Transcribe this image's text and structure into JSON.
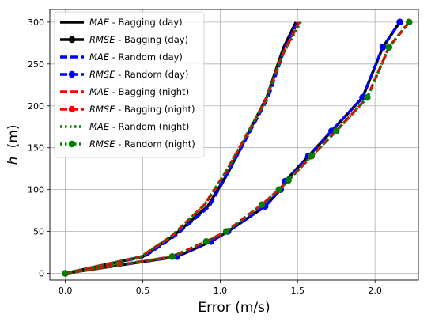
{
  "chart_data": {
    "type": "line",
    "xlabel": "Error (m/s)",
    "ylabel": "h",
    "ylabel_unit": "(m)",
    "xlim": [
      -0.1,
      2.28
    ],
    "ylim": [
      -8,
      315
    ],
    "x_ticks": [
      0.0,
      0.5,
      1.0,
      1.5,
      2.0
    ],
    "x_tick_labels": [
      "0.0",
      "0.5",
      "1.0",
      "1.5",
      "2.0"
    ],
    "y_ticks": [
      0,
      50,
      100,
      150,
      200,
      250,
      300
    ],
    "y_tick_labels": [
      "0",
      "50",
      "100",
      "150",
      "200",
      "250",
      "300"
    ],
    "grid": true,
    "legend_position": "top-left",
    "series": [
      {
        "metric": "MAE",
        "label_rest": " - Bagging (day)",
        "color": "#000000",
        "style": "solid",
        "marker": "none",
        "x": [
          0.0,
          0.5,
          0.7,
          0.92,
          1.05,
          1.3,
          1.41,
          1.49
        ],
        "y": [
          0,
          20,
          45,
          80,
          120,
          210,
          270,
          300
        ]
      },
      {
        "metric": "RMSE",
        "label_rest": " - Bagging (day)",
        "color": "#000000",
        "style": "solid",
        "marker": "circle",
        "x": [
          0.0,
          0.72,
          0.94,
          1.05,
          1.29,
          1.39,
          1.42,
          1.57,
          1.72,
          1.92,
          2.05,
          2.16
        ],
        "y": [
          0,
          20,
          38,
          50,
          80,
          100,
          110,
          140,
          170,
          210,
          270,
          300
        ]
      },
      {
        "metric": "MAE",
        "label_rest": "  - Random (day)",
        "color": "#0000ff",
        "style": "dashed",
        "marker": "none",
        "x": [
          0.0,
          0.51,
          0.71,
          0.93,
          1.05,
          1.31,
          1.42,
          1.5
        ],
        "y": [
          0,
          20,
          45,
          80,
          120,
          210,
          270,
          300
        ]
      },
      {
        "metric": "RMSE",
        "label_rest": " - Random (day)",
        "color": "#0000ff",
        "style": "dashed",
        "marker": "circle",
        "x": [
          0.0,
          0.72,
          0.94,
          1.05,
          1.29,
          1.39,
          1.42,
          1.57,
          1.72,
          1.92,
          2.05,
          2.16
        ],
        "y": [
          0,
          20,
          38,
          50,
          80,
          100,
          110,
          140,
          170,
          210,
          270,
          300
        ]
      },
      {
        "metric": "MAE",
        "label_rest": " - Bagging (night)",
        "color": "#ff0000",
        "style": "dashed",
        "marker": "none",
        "x": [
          0.0,
          0.49,
          0.69,
          0.9,
          1.04,
          1.29,
          1.4,
          1.51
        ],
        "y": [
          0,
          20,
          45,
          82,
          122,
          205,
          260,
          300
        ]
      },
      {
        "metric": "RMSE",
        "label_rest": " - Bagging (night)",
        "color": "#ff0000",
        "style": "dashed",
        "marker": "circle",
        "x": [
          0.0,
          0.69,
          0.91,
          1.04,
          1.27,
          1.38,
          1.44,
          1.59,
          1.75,
          1.95,
          2.09,
          2.22
        ],
        "y": [
          0,
          20,
          38,
          50,
          82,
          100,
          111,
          140,
          170,
          210,
          270,
          300
        ]
      },
      {
        "metric": "MAE",
        "label_rest": "  - Random (night)",
        "color": "#008000",
        "style": "dotted",
        "marker": "none",
        "x": [
          0.0,
          0.49,
          0.69,
          0.9,
          1.04,
          1.29,
          1.4,
          1.52
        ],
        "y": [
          0,
          20,
          45,
          82,
          122,
          205,
          260,
          300
        ]
      },
      {
        "metric": "RMSE",
        "label_rest": " - Random (night)",
        "color": "#008000",
        "style": "dotted",
        "marker": "circle",
        "x": [
          0.0,
          0.69,
          0.91,
          1.04,
          1.27,
          1.38,
          1.44,
          1.59,
          1.75,
          1.95,
          2.09,
          2.22
        ],
        "y": [
          0,
          20,
          38,
          50,
          82,
          100,
          111,
          140,
          170,
          210,
          270,
          300
        ]
      }
    ]
  }
}
